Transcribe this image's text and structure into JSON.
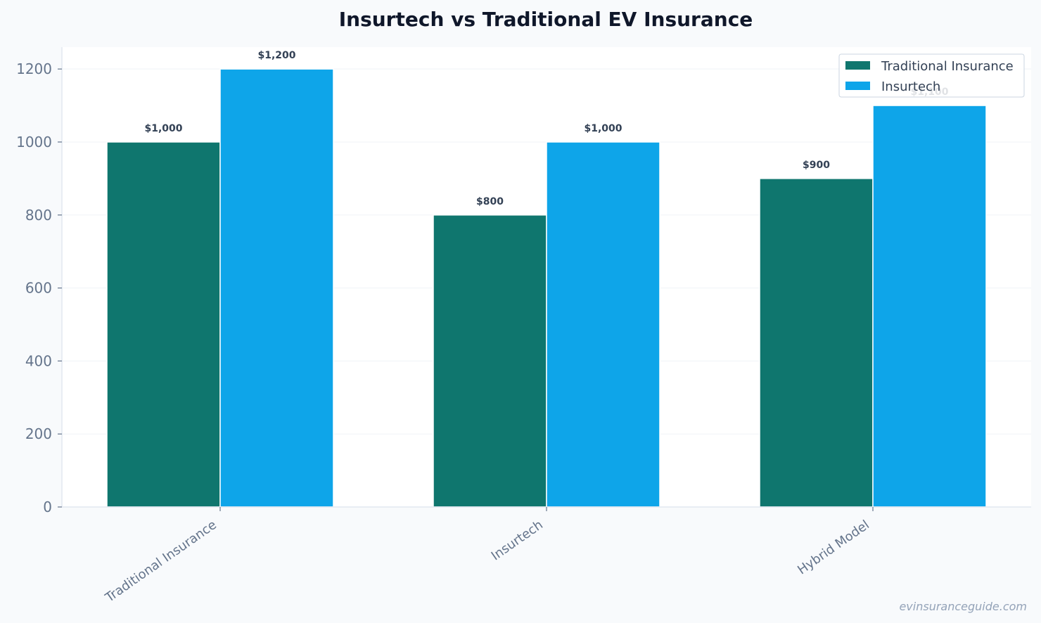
{
  "chart_data": {
    "type": "bar",
    "title": "Insurtech vs Traditional EV Insurance",
    "categories": [
      "Traditional Insurance",
      "Insurtech",
      "Hybrid Model"
    ],
    "series": [
      {
        "name": "Traditional Insurance",
        "color": "#0f766e",
        "values": [
          1000,
          800,
          900
        ],
        "labels": [
          "$1,000",
          "$800",
          "$900"
        ]
      },
      {
        "name": "Insurtech",
        "color": "#0ea5e9",
        "values": [
          1200,
          1000,
          1100
        ],
        "labels": [
          "$1,200",
          "$1,000",
          "$1,100"
        ]
      }
    ],
    "xlabel": "",
    "ylabel": "",
    "ylim": [
      0,
      1260
    ],
    "yticks": [
      0,
      200,
      400,
      600,
      800,
      1000,
      1200
    ],
    "grid": true,
    "legend_position": "top-right"
  },
  "watermark": "evinsuranceguide.com"
}
